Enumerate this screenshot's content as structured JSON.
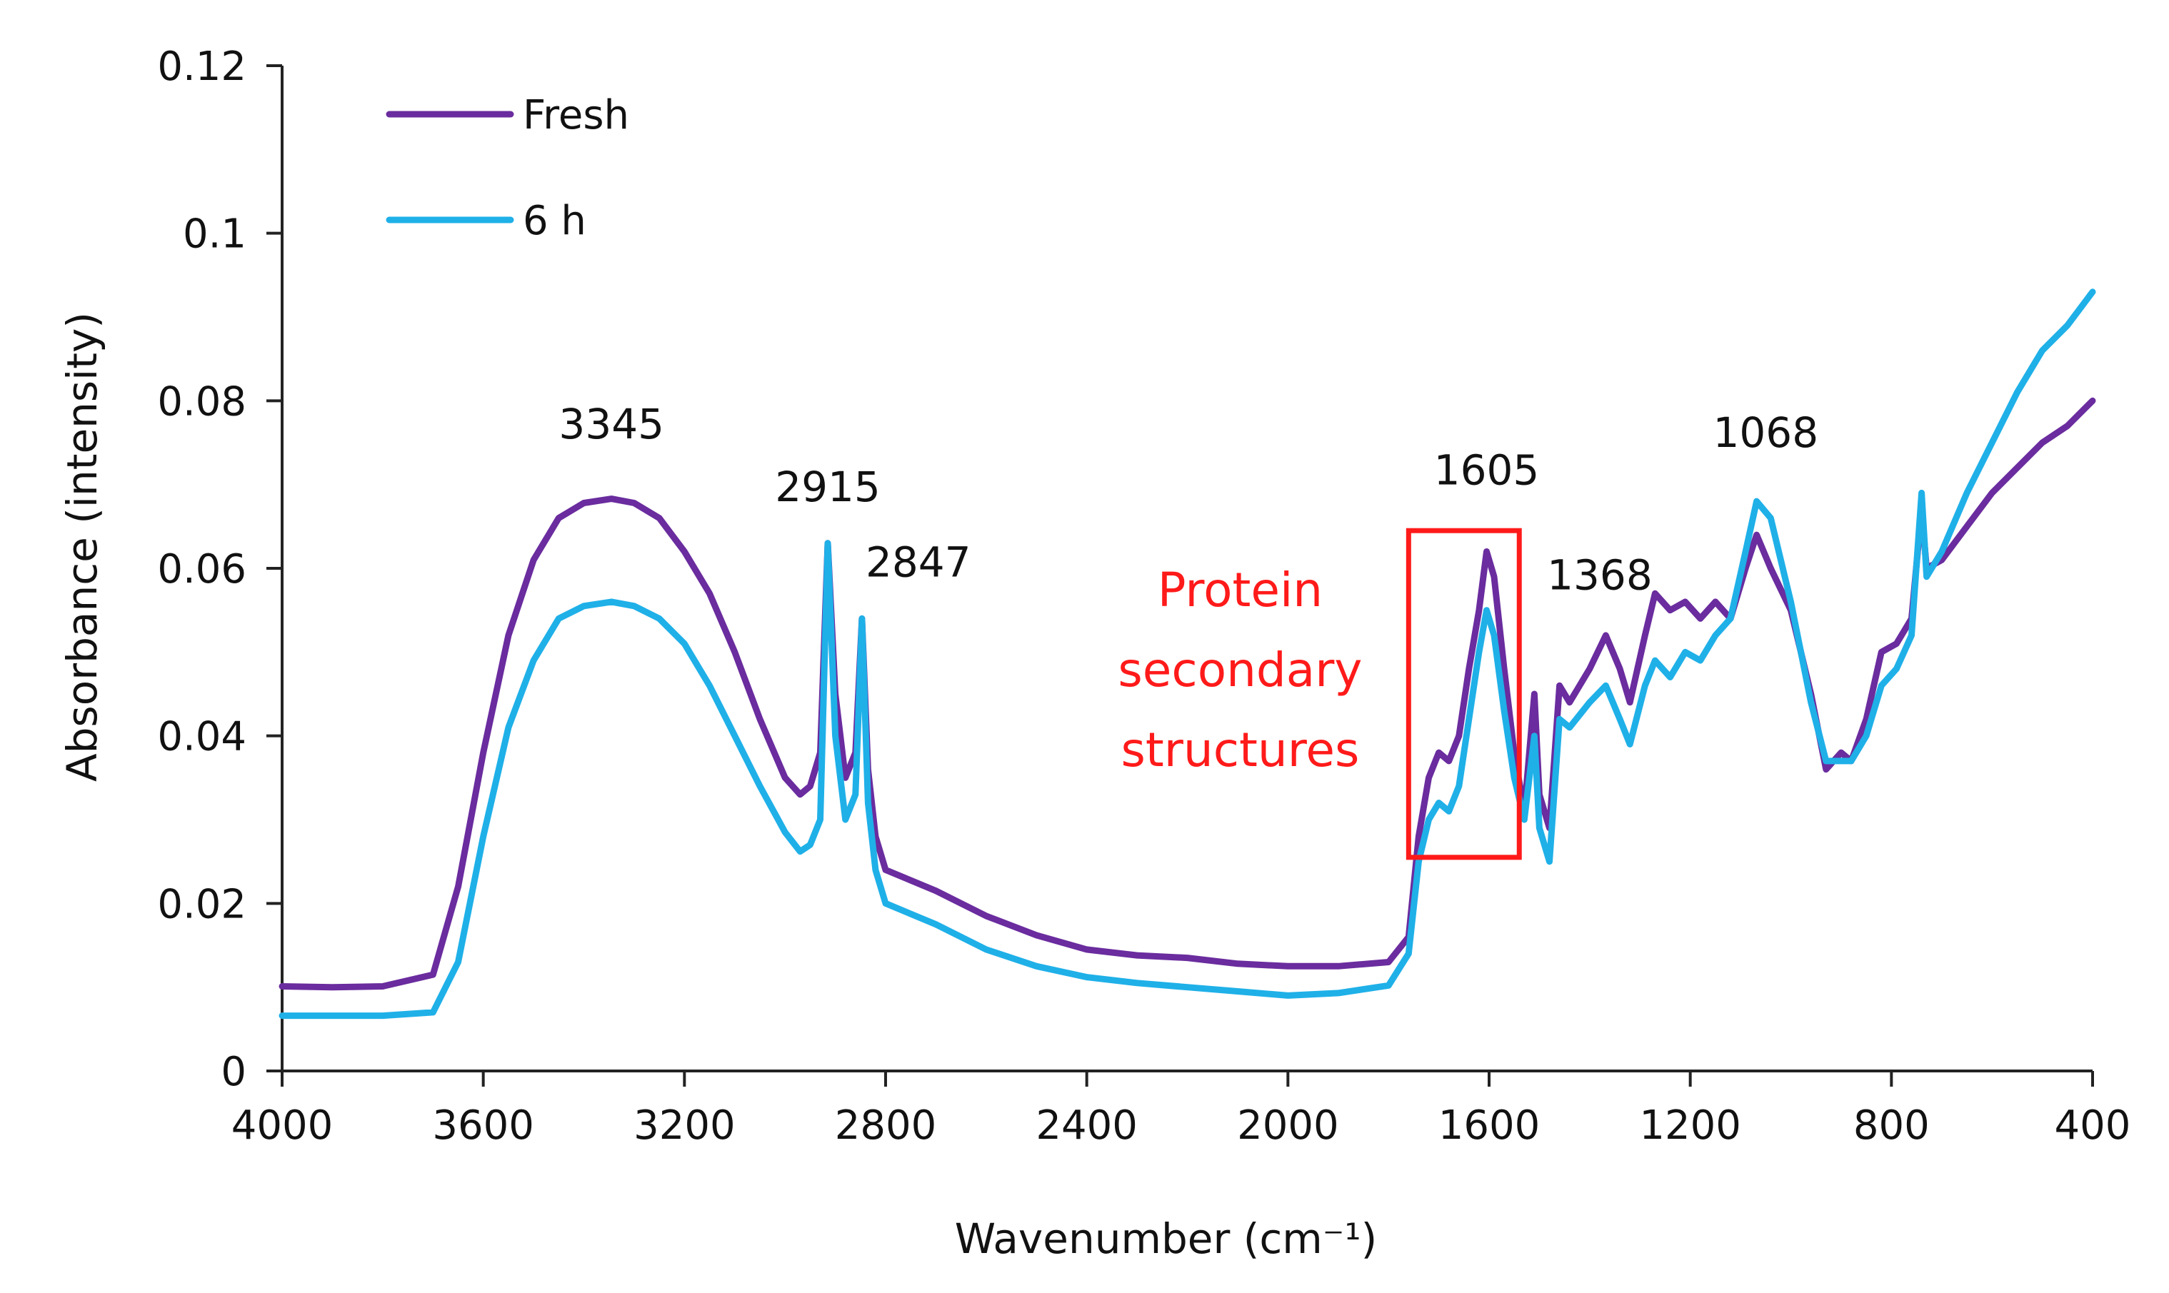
{
  "chart_data": {
    "type": "line",
    "title": "",
    "xlabel": "Wavenumber (cm⁻¹)",
    "ylabel": "Absorbance (intensity)",
    "xlim": [
      4000,
      400
    ],
    "ylim": [
      0,
      0.12
    ],
    "x_ticks": [
      4000,
      3600,
      3200,
      2800,
      2400,
      2000,
      1600,
      1200,
      800,
      400
    ],
    "x_tick_labels": [
      "4000",
      "3600",
      "3200",
      "2800",
      "2400",
      "2000",
      "1600",
      "1200",
      "800",
      "400"
    ],
    "y_ticks": [
      0,
      0.02,
      0.04,
      0.06,
      0.08,
      0.1,
      0.12
    ],
    "y_tick_labels": [
      "0",
      "0.02",
      "0.04",
      "0.06",
      "0.08",
      "0.1",
      "0.12"
    ],
    "legend_position": "top-left",
    "grid": false,
    "series": [
      {
        "name": "Fresh",
        "color": "#6a2c9e",
        "points": [
          [
            4000,
            0.0101
          ],
          [
            3900,
            0.01
          ],
          [
            3800,
            0.0101
          ],
          [
            3700,
            0.0115
          ],
          [
            3650,
            0.022
          ],
          [
            3600,
            0.038
          ],
          [
            3550,
            0.052
          ],
          [
            3500,
            0.061
          ],
          [
            3450,
            0.066
          ],
          [
            3400,
            0.0678
          ],
          [
            3345,
            0.0683
          ],
          [
            3300,
            0.0678
          ],
          [
            3250,
            0.066
          ],
          [
            3200,
            0.062
          ],
          [
            3150,
            0.057
          ],
          [
            3100,
            0.05
          ],
          [
            3050,
            0.042
          ],
          [
            3000,
            0.035
          ],
          [
            2970,
            0.033
          ],
          [
            2950,
            0.034
          ],
          [
            2930,
            0.038
          ],
          [
            2915,
            0.063
          ],
          [
            2900,
            0.045
          ],
          [
            2880,
            0.035
          ],
          [
            2860,
            0.038
          ],
          [
            2847,
            0.054
          ],
          [
            2835,
            0.036
          ],
          [
            2820,
            0.028
          ],
          [
            2800,
            0.024
          ],
          [
            2700,
            0.0215
          ],
          [
            2600,
            0.0185
          ],
          [
            2500,
            0.0162
          ],
          [
            2400,
            0.0145
          ],
          [
            2300,
            0.0138
          ],
          [
            2200,
            0.0135
          ],
          [
            2100,
            0.0128
          ],
          [
            2000,
            0.0125
          ],
          [
            1900,
            0.0125
          ],
          [
            1800,
            0.013
          ],
          [
            1760,
            0.016
          ],
          [
            1740,
            0.028
          ],
          [
            1720,
            0.035
          ],
          [
            1700,
            0.038
          ],
          [
            1680,
            0.037
          ],
          [
            1660,
            0.04
          ],
          [
            1640,
            0.048
          ],
          [
            1620,
            0.055
          ],
          [
            1605,
            0.062
          ],
          [
            1590,
            0.059
          ],
          [
            1570,
            0.048
          ],
          [
            1550,
            0.038
          ],
          [
            1530,
            0.031
          ],
          [
            1510,
            0.045
          ],
          [
            1500,
            0.033
          ],
          [
            1480,
            0.029
          ],
          [
            1460,
            0.046
          ],
          [
            1440,
            0.044
          ],
          [
            1400,
            0.048
          ],
          [
            1368,
            0.052
          ],
          [
            1340,
            0.048
          ],
          [
            1320,
            0.044
          ],
          [
            1290,
            0.052
          ],
          [
            1270,
            0.057
          ],
          [
            1240,
            0.055
          ],
          [
            1210,
            0.056
          ],
          [
            1180,
            0.054
          ],
          [
            1150,
            0.056
          ],
          [
            1120,
            0.054
          ],
          [
            1090,
            0.06
          ],
          [
            1068,
            0.064
          ],
          [
            1040,
            0.06
          ],
          [
            1000,
            0.055
          ],
          [
            960,
            0.045
          ],
          [
            930,
            0.036
          ],
          [
            900,
            0.038
          ],
          [
            880,
            0.037
          ],
          [
            850,
            0.042
          ],
          [
            820,
            0.05
          ],
          [
            790,
            0.051
          ],
          [
            760,
            0.054
          ],
          [
            740,
            0.067
          ],
          [
            730,
            0.06
          ],
          [
            700,
            0.061
          ],
          [
            650,
            0.065
          ],
          [
            600,
            0.069
          ],
          [
            550,
            0.072
          ],
          [
            500,
            0.075
          ],
          [
            450,
            0.077
          ],
          [
            400,
            0.08
          ]
        ]
      },
      {
        "name": "6 h",
        "color": "#1fb0e8",
        "points": [
          [
            4000,
            0.0066
          ],
          [
            3900,
            0.0066
          ],
          [
            3800,
            0.0066
          ],
          [
            3700,
            0.007
          ],
          [
            3650,
            0.013
          ],
          [
            3600,
            0.028
          ],
          [
            3550,
            0.041
          ],
          [
            3500,
            0.049
          ],
          [
            3450,
            0.054
          ],
          [
            3400,
            0.0555
          ],
          [
            3345,
            0.056
          ],
          [
            3300,
            0.0555
          ],
          [
            3250,
            0.054
          ],
          [
            3200,
            0.051
          ],
          [
            3150,
            0.046
          ],
          [
            3100,
            0.04
          ],
          [
            3050,
            0.034
          ],
          [
            3000,
            0.0285
          ],
          [
            2970,
            0.0262
          ],
          [
            2950,
            0.027
          ],
          [
            2930,
            0.03
          ],
          [
            2915,
            0.063
          ],
          [
            2900,
            0.04
          ],
          [
            2880,
            0.03
          ],
          [
            2860,
            0.033
          ],
          [
            2847,
            0.054
          ],
          [
            2835,
            0.032
          ],
          [
            2820,
            0.024
          ],
          [
            2800,
            0.02
          ],
          [
            2700,
            0.0175
          ],
          [
            2600,
            0.0145
          ],
          [
            2500,
            0.0125
          ],
          [
            2400,
            0.0112
          ],
          [
            2300,
            0.0105
          ],
          [
            2200,
            0.01
          ],
          [
            2100,
            0.0095
          ],
          [
            2000,
            0.009
          ],
          [
            1900,
            0.0093
          ],
          [
            1800,
            0.0102
          ],
          [
            1760,
            0.014
          ],
          [
            1740,
            0.025
          ],
          [
            1720,
            0.03
          ],
          [
            1700,
            0.032
          ],
          [
            1680,
            0.031
          ],
          [
            1660,
            0.034
          ],
          [
            1640,
            0.042
          ],
          [
            1620,
            0.05
          ],
          [
            1605,
            0.055
          ],
          [
            1590,
            0.052
          ],
          [
            1570,
            0.043
          ],
          [
            1550,
            0.035
          ],
          [
            1530,
            0.03
          ],
          [
            1510,
            0.04
          ],
          [
            1500,
            0.029
          ],
          [
            1480,
            0.025
          ],
          [
            1460,
            0.042
          ],
          [
            1440,
            0.041
          ],
          [
            1400,
            0.044
          ],
          [
            1368,
            0.046
          ],
          [
            1340,
            0.042
          ],
          [
            1320,
            0.039
          ],
          [
            1290,
            0.046
          ],
          [
            1270,
            0.049
          ],
          [
            1240,
            0.047
          ],
          [
            1210,
            0.05
          ],
          [
            1180,
            0.049
          ],
          [
            1150,
            0.052
          ],
          [
            1120,
            0.054
          ],
          [
            1090,
            0.062
          ],
          [
            1068,
            0.068
          ],
          [
            1040,
            0.066
          ],
          [
            1000,
            0.056
          ],
          [
            960,
            0.044
          ],
          [
            930,
            0.037
          ],
          [
            900,
            0.037
          ],
          [
            880,
            0.037
          ],
          [
            850,
            0.04
          ],
          [
            820,
            0.046
          ],
          [
            790,
            0.048
          ],
          [
            760,
            0.052
          ],
          [
            740,
            0.069
          ],
          [
            730,
            0.059
          ],
          [
            700,
            0.062
          ],
          [
            650,
            0.069
          ],
          [
            600,
            0.075
          ],
          [
            550,
            0.081
          ],
          [
            500,
            0.086
          ],
          [
            450,
            0.089
          ],
          [
            400,
            0.093
          ]
        ]
      }
    ],
    "peak_labels": [
      {
        "text": "3345",
        "x": 3345,
        "y": 0.0755
      },
      {
        "text": "2915",
        "x": 2915,
        "y": 0.068
      },
      {
        "text": "2847",
        "x": 2735,
        "y": 0.059
      },
      {
        "text": "1605",
        "x": 1605,
        "y": 0.07
      },
      {
        "text": "1368",
        "x": 1380,
        "y": 0.0575
      },
      {
        "text": "1068",
        "x": 1050,
        "y": 0.0745
      }
    ],
    "annotation": {
      "lines": [
        "Protein",
        "secondary",
        "structures"
      ],
      "color": "#ff1a1a",
      "x": 2095,
      "y": 0.0555,
      "box_x_range": [
        1760,
        1540
      ],
      "box_y_range": [
        0.0255,
        0.0645
      ]
    }
  }
}
